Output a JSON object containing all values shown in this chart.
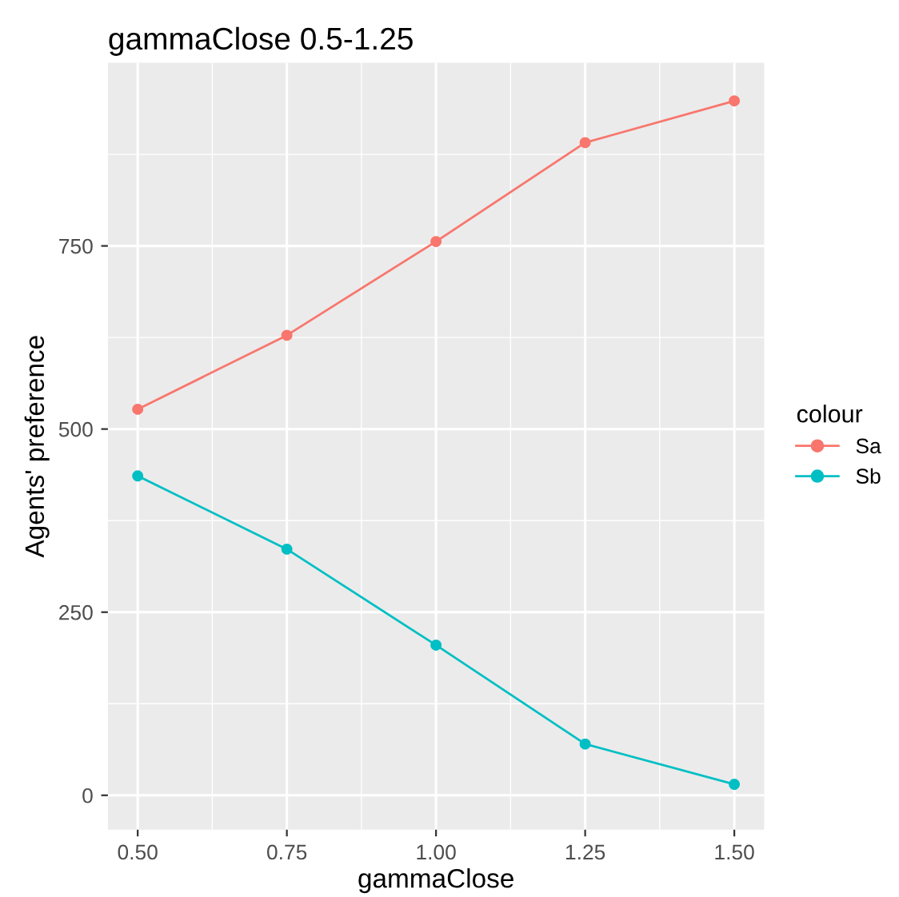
{
  "chart_data": {
    "type": "line",
    "title": "gammaClose 0.5-1.25",
    "xlabel": "gammaClose",
    "ylabel": "Agents' preference",
    "legend_title": "colour",
    "x": [
      0.5,
      0.75,
      1.0,
      1.25,
      1.5
    ],
    "series": [
      {
        "name": "Sa",
        "color": "#f8766d",
        "values": [
          527,
          628,
          756,
          891,
          948
        ]
      },
      {
        "name": "Sb",
        "color": "#00bfc4",
        "values": [
          436,
          336,
          205,
          70,
          15
        ]
      }
    ],
    "xlim": [
      0.45,
      1.55
    ],
    "xticks": [
      {
        "value": 0.5,
        "label": "0.50"
      },
      {
        "value": 0.75,
        "label": "0.75"
      },
      {
        "value": 1.0,
        "label": "1.00"
      },
      {
        "value": 1.25,
        "label": "1.25"
      },
      {
        "value": 1.5,
        "label": "1.50"
      }
    ],
    "ylim": [
      -47,
      1000
    ],
    "yticks": [
      0,
      250,
      500,
      750
    ],
    "grid": true,
    "legend": "right",
    "marker": "circle",
    "line_style": "solid"
  }
}
